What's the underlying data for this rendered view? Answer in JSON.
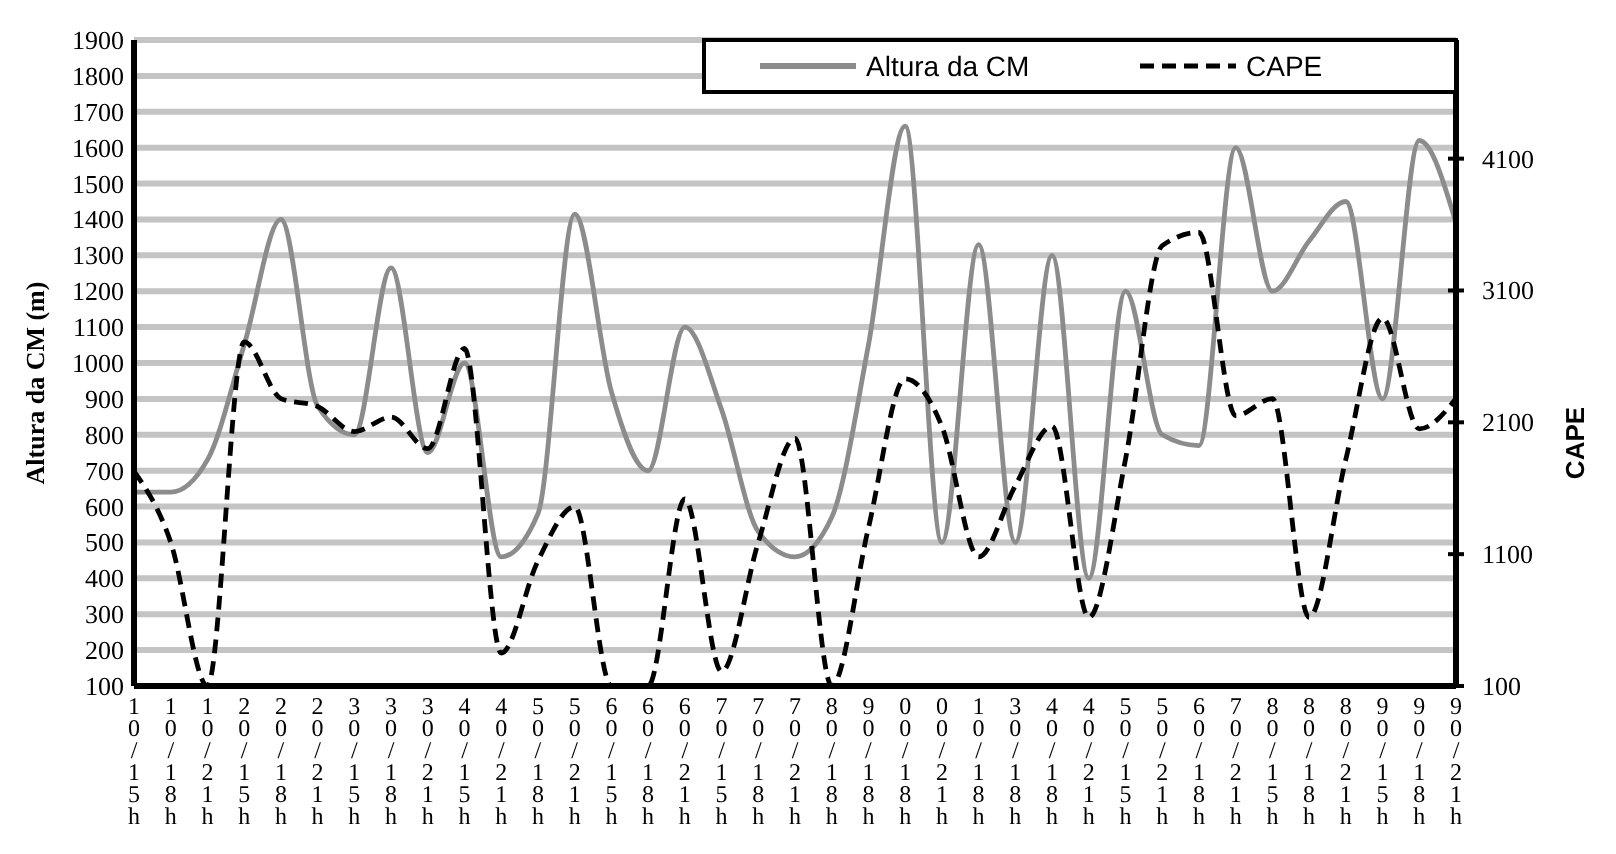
{
  "chart_data": {
    "type": "line",
    "ylabel": "Altura da CM (m)",
    "y2label": "CAPE",
    "categories": [
      "10/15h",
      "10/18h",
      "10/21h",
      "20/15h",
      "20/18h",
      "20/21h",
      "30/15h",
      "30/18h",
      "30/21h",
      "40/15h",
      "40/21h",
      "50/18h",
      "50/21h",
      "60/15h",
      "60/18h",
      "60/21h",
      "70/15h",
      "70/18h",
      "70/21h",
      "80/18h",
      "90/18h",
      "00/18h",
      "00/21h",
      "10/18h",
      "30/18h",
      "40/18h",
      "40/21h",
      "50/15h",
      "50/21h",
      "60/18h",
      "70/21h",
      "80/15h",
      "80/18h",
      "80/21h",
      "90/15h",
      "90/18h",
      "90/21h"
    ],
    "series": [
      {
        "name": "Altura da CM",
        "color": "#8c8c8c",
        "line_style": "solid",
        "values": [
          640,
          640,
          730,
          1050,
          1400,
          880,
          800,
          1265,
          750,
          1000,
          460,
          580,
          1415,
          920,
          700,
          1100,
          870,
          530,
          460,
          570,
          1050,
          1660,
          500,
          1330,
          500,
          1300,
          400,
          1200,
          800,
          770,
          1600,
          1200,
          1340,
          1450,
          900,
          1620,
          1390
        ]
      },
      {
        "name": "CAPE",
        "color": "#000000",
        "line_style": "dashed",
        "axis": "y2",
        "values": [
          1730,
          1190,
          100,
          2710,
          2280,
          2220,
          2030,
          2140,
          1900,
          2660,
          350,
          1050,
          1460,
          100,
          100,
          1520,
          210,
          1190,
          1980,
          100,
          1300,
          2430,
          2070,
          1080,
          1620,
          2070,
          620,
          1820,
          3440,
          3540,
          2150,
          2280,
          620,
          1820,
          2890,
          2050,
          2280
        ]
      }
    ],
    "ylim": [
      100,
      1900
    ],
    "yticks": [
      100,
      200,
      300,
      400,
      500,
      600,
      700,
      800,
      900,
      1000,
      1100,
      1200,
      1300,
      1400,
      1500,
      1600,
      1700,
      1800,
      1900
    ],
    "y2lim": [
      100,
      5000
    ],
    "y2ticks": [
      100,
      1100,
      2100,
      3100,
      4100
    ],
    "grid": "y",
    "legend": "top right"
  }
}
